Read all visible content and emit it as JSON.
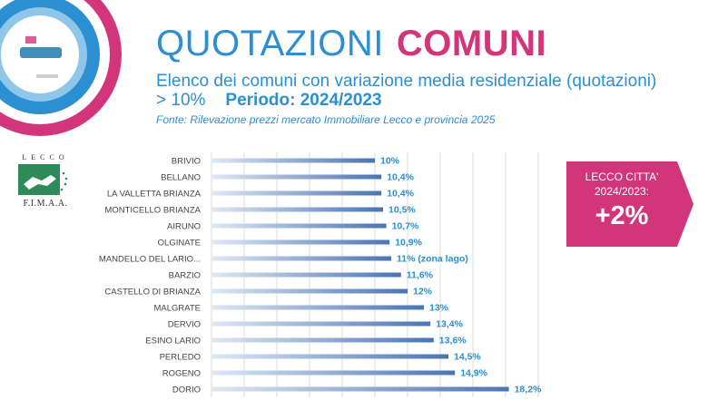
{
  "header": {
    "title_part1": "QUOTAZIONI",
    "title_part2": "COMUNI",
    "subtitle": "Elenco dei comuni con variazione media residenziale (quotazioni) > 10%",
    "period": "Periodo: 2024/2023",
    "source": "Fonte: Rilevazione prezzi mercato Immobiliare Lecco e provincia 2025"
  },
  "logo": {
    "top_text": "LECCO",
    "name": "F.I.M.A.A."
  },
  "callout": {
    "line1": "LECCO CITTA'",
    "line2": "2024/2023:",
    "value": "+2%"
  },
  "colors": {
    "blue": "#2b8fd1",
    "magenta": "#d2357a",
    "bar": "#4a74b4"
  },
  "chart_data": {
    "type": "bar",
    "orientation": "horizontal",
    "categories": [
      "BRIVIO",
      "BELLANO",
      "LA VALLETTA BRIANZA",
      "MONTICELLO BRIANZA",
      "AIRUNO",
      "OLGINATE",
      "MANDELLO DEL LARIO...",
      "BARZIO",
      "CASTELLO DI BRIANZA",
      "MALGRATE",
      "DERVIO",
      "ESINO LARIO",
      "PERLEDO",
      "ROGENO",
      "DORIO"
    ],
    "values": [
      10,
      10.4,
      10.4,
      10.5,
      10.7,
      10.9,
      11,
      11.6,
      12,
      13,
      13.4,
      13.6,
      14.5,
      14.9,
      18.2
    ],
    "data_labels": [
      "10%",
      "10,4%",
      "10,4%",
      "10,5%",
      "10,7%",
      "10,9%",
      "11% (zona lago)",
      "11,6%",
      "12%",
      "13%",
      "13,4%",
      "13,6%",
      "14,5%",
      "14,9%",
      "18,2%"
    ],
    "xlim": [
      0,
      20
    ],
    "grid": true
  }
}
